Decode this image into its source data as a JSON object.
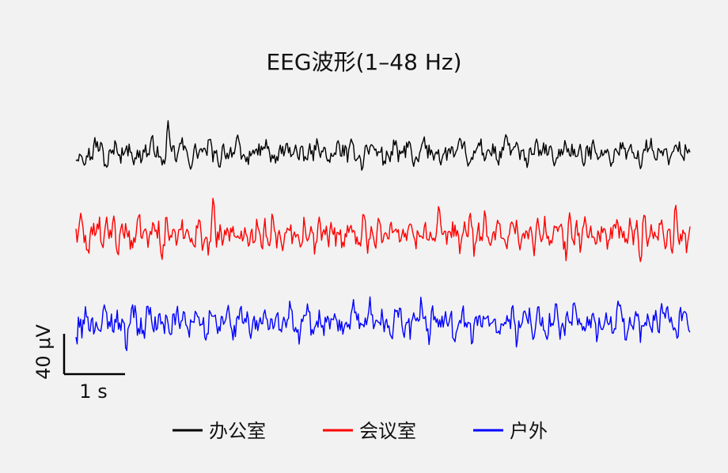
{
  "chart_data": {
    "type": "line",
    "title": "EEG波形(1–48 Hz)",
    "xlabel": "",
    "ylabel": "",
    "grid": false,
    "legend_position": "bottom",
    "duration_s": 8,
    "scale_bar": {
      "time_label": "1 s",
      "amplitude_label": "40 μV",
      "time_s": 1,
      "amplitude_uv": 40
    },
    "series": [
      {
        "name": "办公室",
        "color": "#000000",
        "amplitude_uv": 12,
        "spike_times_s": [
          1.2,
          5.6
        ],
        "spike_uv": 22
      },
      {
        "name": "会议室",
        "color": "#ff0000",
        "amplitude_uv": 16,
        "spike_times_s": [
          1.8,
          4.1,
          7.8
        ],
        "spike_uv": 18
      },
      {
        "name": "户外",
        "color": "#0000ff",
        "amplitude_uv": 16,
        "spike_times_s": [
          4.5,
          7.7
        ],
        "spike_uv": 20
      }
    ]
  }
}
